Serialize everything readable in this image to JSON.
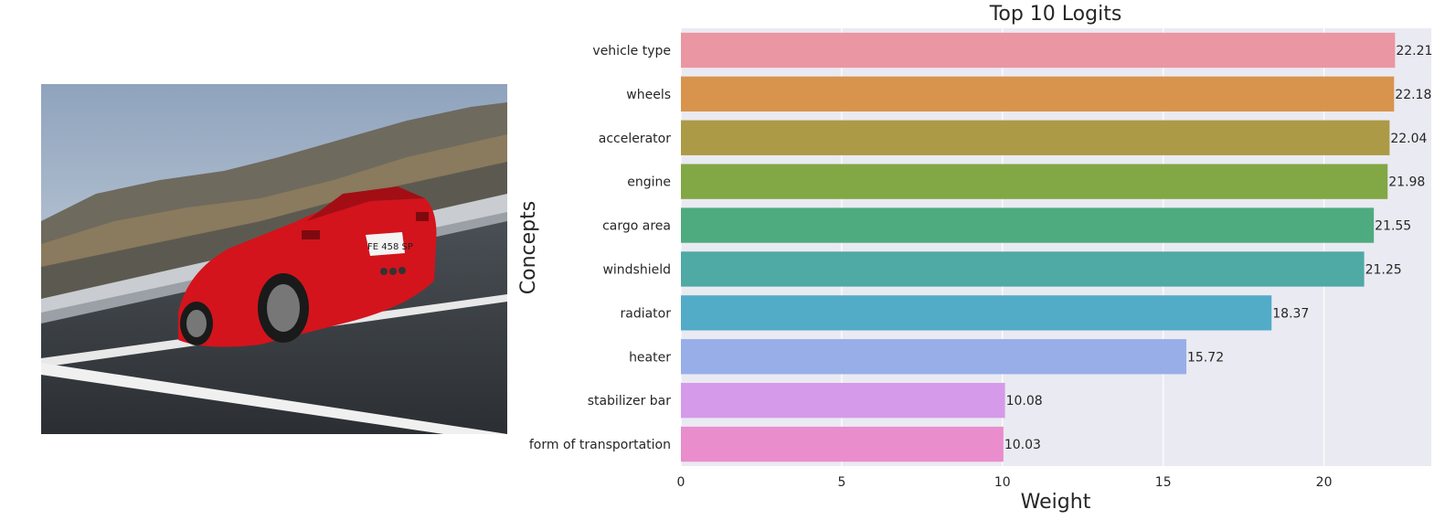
{
  "image": {
    "subject": "red-convertible-sports-car-photo",
    "plate_text": "FE 458 SP"
  },
  "chart_data": {
    "type": "bar",
    "orientation": "horizontal",
    "title": "Top 10 Logits",
    "xlabel": "Weight",
    "ylabel": "Concepts",
    "categories": [
      "vehicle type",
      "wheels",
      "accelerator",
      "engine",
      "cargo area",
      "windshield",
      "radiator",
      "heater",
      "stabilizer bar",
      "form of transportation"
    ],
    "values": [
      22.21,
      22.18,
      22.04,
      21.98,
      21.55,
      21.25,
      18.37,
      15.72,
      10.08,
      10.03
    ],
    "value_labels": [
      "22.21",
      "22.18",
      "22.04",
      "21.98",
      "21.55",
      "21.25",
      "18.37",
      "15.72",
      "10.08",
      "10.03"
    ],
    "colors": [
      "#ea96a3",
      "#d8944c",
      "#ac9a47",
      "#82a745",
      "#4eab7f",
      "#4fa9a4",
      "#52acc7",
      "#97aee8",
      "#d59ae9",
      "#e98dcd"
    ],
    "xticks": [
      0,
      5,
      10,
      15,
      20
    ],
    "xtick_labels": [
      "0",
      "5",
      "10",
      "15",
      "20"
    ],
    "xlim": [
      0,
      23.32
    ],
    "grid": true,
    "background": "#eaeaf2"
  }
}
